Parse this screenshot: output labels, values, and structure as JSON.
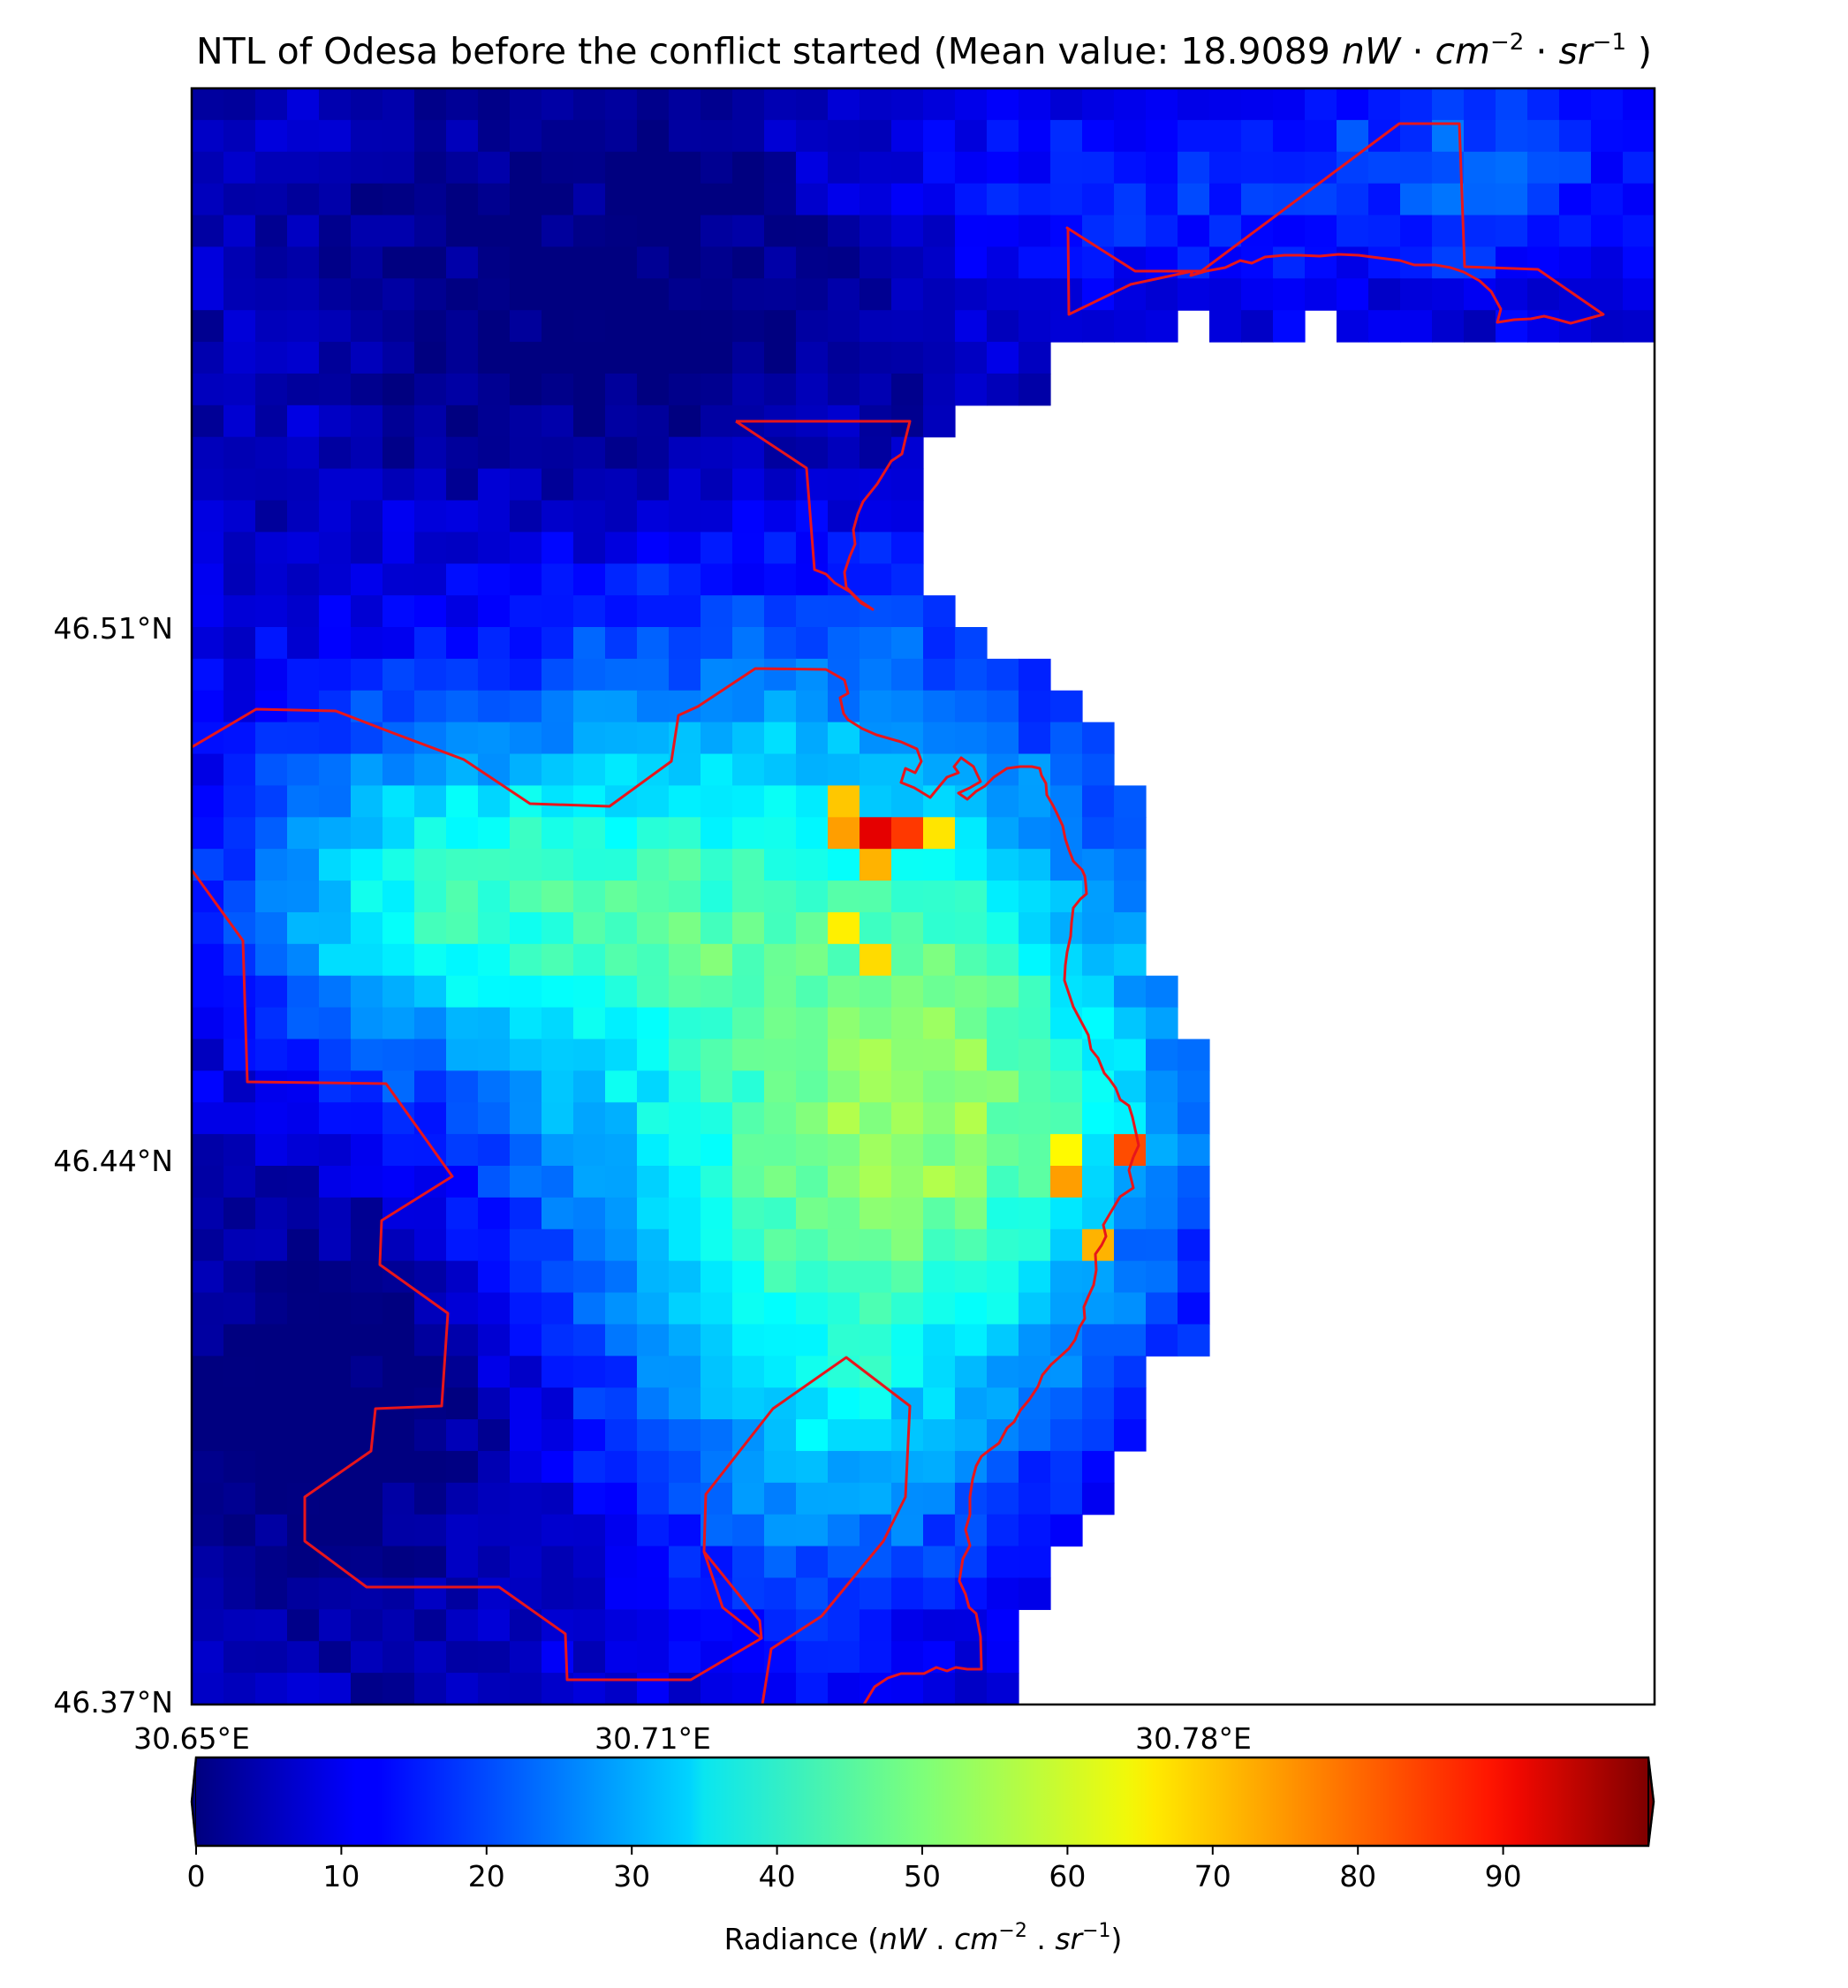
{
  "title": {
    "prefix": "NTL of Odesa before the conflict started (Mean value: 18.9089 ",
    "unit_nW": "nW",
    "unit_dot1": " · ",
    "unit_cm": "cm",
    "unit_cm_exp": "−2",
    "unit_dot2": " · ",
    "unit_sr": "sr",
    "unit_sr_exp": "−1",
    "suffix": " )"
  },
  "chart_data": {
    "type": "heatmap",
    "colormap": "jet",
    "lat_ticks": [
      "46.51°N",
      "46.44°N",
      "46.37°N"
    ],
    "lon_ticks": [
      "30.65°E",
      "30.71°E",
      "30.78°E"
    ],
    "grid_cols": 46,
    "grid_rows": 51,
    "boundary_color": "#e8151b",
    "sea_mask": "white (no data)",
    "colorbar": {
      "min": 0,
      "max": 100,
      "ticks": [
        "0",
        "10",
        "20",
        "30",
        "40",
        "50",
        "60",
        "70",
        "80",
        "90"
      ],
      "extend": "both",
      "label_prefix": "Radiance (",
      "label_nW": "nW",
      "label_dot1": " . ",
      "label_cm": "cm",
      "label_cm_exp": "−2",
      "label_dot2": " . ",
      "label_sr": "sr",
      "label_sr_exp": "−1",
      "label_suffix": ")"
    },
    "hotspots": [
      {
        "col": 21,
        "row": 23,
        "value": 90
      },
      {
        "col": 22,
        "row": 23,
        "value": 82
      },
      {
        "col": 20,
        "row": 23,
        "value": 72
      },
      {
        "col": 23,
        "row": 23,
        "value": 65
      },
      {
        "col": 20,
        "row": 22,
        "value": 68
      },
      {
        "col": 21,
        "row": 24,
        "value": 70
      },
      {
        "col": 21,
        "row": 27,
        "value": 66
      },
      {
        "col": 20,
        "row": 26,
        "value": 64
      },
      {
        "col": 29,
        "row": 33,
        "value": 80
      },
      {
        "col": 27,
        "row": 34,
        "value": 72
      },
      {
        "col": 28,
        "row": 36,
        "value": 70
      },
      {
        "col": 27,
        "row": 33,
        "value": 63
      }
    ]
  }
}
